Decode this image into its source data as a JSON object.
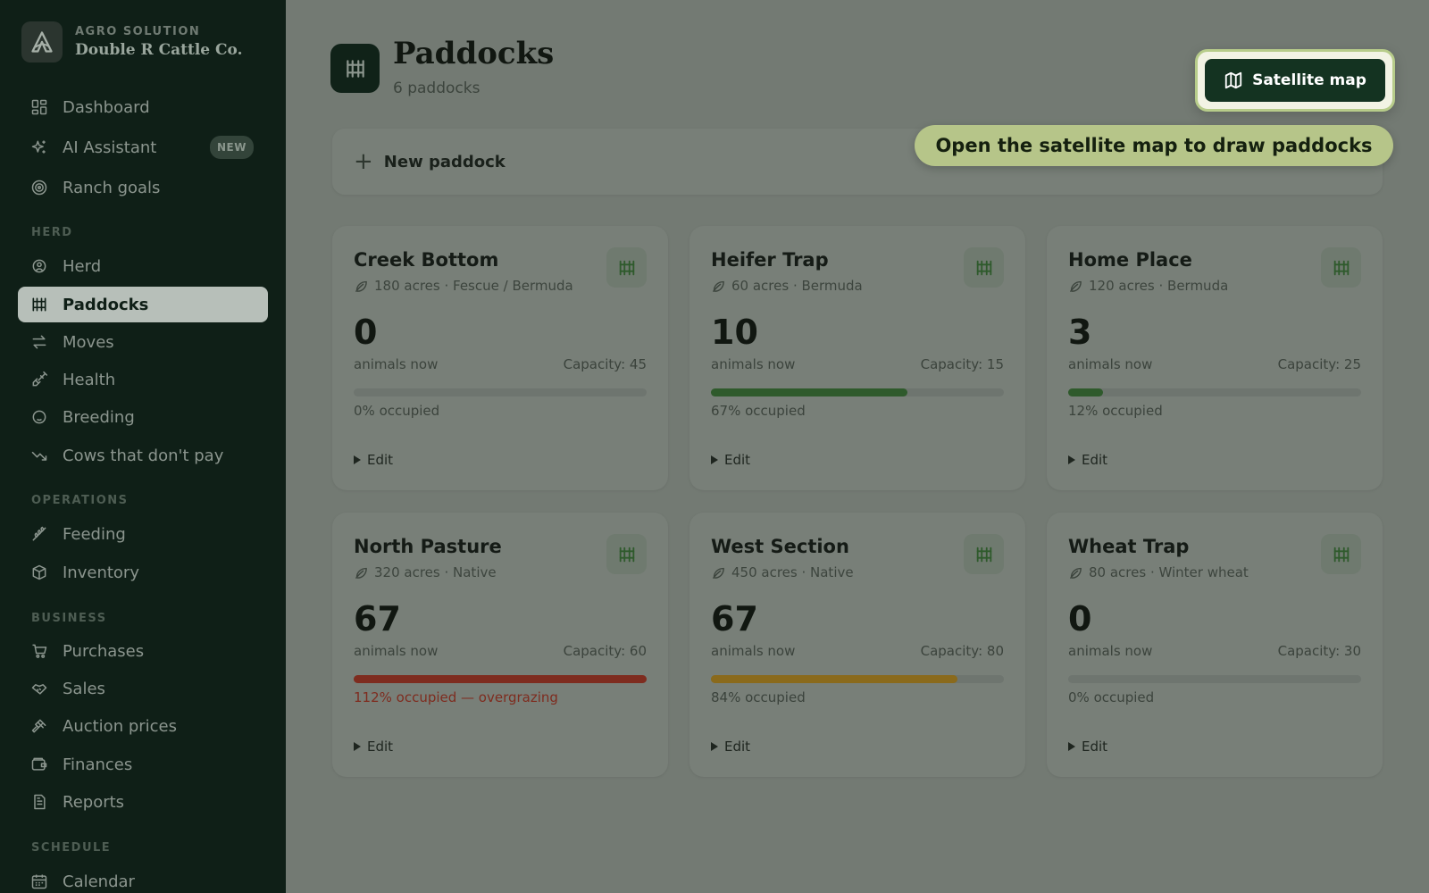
{
  "brand": {
    "tag": "AGRO SOLUTION",
    "name": "Double R Cattle Co."
  },
  "sidebar": {
    "items": [
      {
        "label": "Dashboard",
        "icon": "dashboard-icon"
      },
      {
        "label": "AI Assistant",
        "icon": "sparkles-icon",
        "badge": "NEW"
      },
      {
        "label": "Ranch goals",
        "icon": "target-icon"
      },
      {
        "label": "Herd",
        "icon": "tag-icon"
      },
      {
        "label": "Paddocks",
        "icon": "fence-icon",
        "active": true
      },
      {
        "label": "Moves",
        "icon": "arrows-icon"
      },
      {
        "label": "Health",
        "icon": "syringe-icon"
      },
      {
        "label": "Breeding",
        "icon": "breeding-icon"
      },
      {
        "label": "Cows that don't pay",
        "icon": "trending-down-icon"
      },
      {
        "label": "Feeding",
        "icon": "wheat-icon"
      },
      {
        "label": "Inventory",
        "icon": "box-icon"
      },
      {
        "label": "Purchases",
        "icon": "cart-icon"
      },
      {
        "label": "Sales",
        "icon": "handshake-icon"
      },
      {
        "label": "Auction prices",
        "icon": "gavel-icon"
      },
      {
        "label": "Finances",
        "icon": "wallet-icon"
      },
      {
        "label": "Reports",
        "icon": "report-icon"
      },
      {
        "label": "Calendar",
        "icon": "calendar-icon"
      }
    ],
    "sections": [
      "HERD",
      "OPERATIONS",
      "BUSINESS",
      "SCHEDULE"
    ]
  },
  "page": {
    "title": "Paddocks",
    "subtitle": "6 paddocks"
  },
  "actions": {
    "satellite_label": "Satellite map",
    "new_paddock_label": "New paddock"
  },
  "tooltip": {
    "text": "Open the satellite map to draw paddocks"
  },
  "paddocks": [
    {
      "name": "Creek Bottom",
      "meta": "180 acres · Fescue / Bermuda",
      "count": "0",
      "count_label": "animals now",
      "capacity": "Capacity: 45",
      "occupancy": 0,
      "occupied_text": "0% occupied",
      "status": "empty",
      "edit": "Edit"
    },
    {
      "name": "Heifer Trap",
      "meta": "60 acres · Bermuda",
      "count": "10",
      "count_label": "animals now",
      "capacity": "Capacity: 15",
      "occupancy": 0.67,
      "occupied_text": "67% occupied",
      "status": "ok",
      "edit": "Edit"
    },
    {
      "name": "Home Place",
      "meta": "120 acres · Bermuda",
      "count": "3",
      "count_label": "animals now",
      "capacity": "Capacity: 25",
      "occupancy": 0.12,
      "occupied_text": "12% occupied",
      "status": "ok",
      "edit": "Edit"
    },
    {
      "name": "North Pasture",
      "meta": "320 acres · Native",
      "count": "67",
      "count_label": "animals now",
      "capacity": "Capacity: 60",
      "occupancy": 1.12,
      "occupied_text": "112% occupied — overgrazing",
      "status": "over",
      "edit": "Edit"
    },
    {
      "name": "West Section",
      "meta": "450 acres · Native",
      "count": "67",
      "count_label": "animals now",
      "capacity": "Capacity: 80",
      "occupancy": 0.84,
      "occupied_text": "84% occupied",
      "status": "high",
      "edit": "Edit"
    },
    {
      "name": "Wheat Trap",
      "meta": "80 acres · Winter wheat",
      "count": "0",
      "count_label": "animals now",
      "capacity": "Capacity: 30",
      "occupancy": 0,
      "occupied_text": "0% occupied",
      "status": "empty",
      "edit": "Edit"
    }
  ],
  "colors": {
    "ok": "#2f5a2c",
    "high": "#8a6a1c",
    "over": "#7e2c1f",
    "accent": "#b6c589",
    "sidebar": "#0f1f17"
  }
}
